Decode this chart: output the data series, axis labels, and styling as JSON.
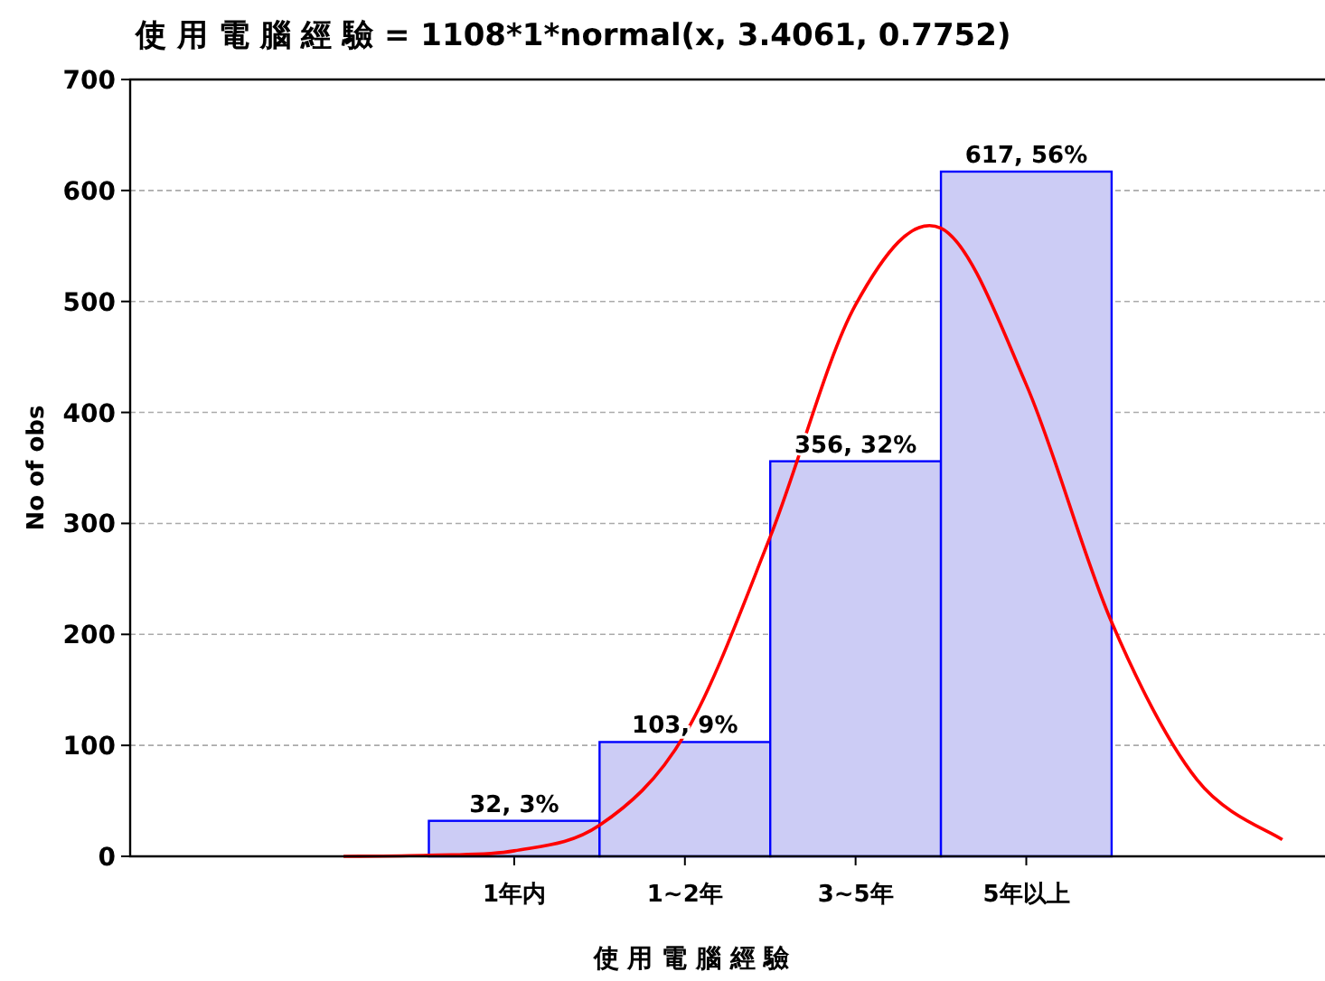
{
  "chart_data": {
    "type": "bar",
    "title": "使 用 電 腦 經 驗  = 1108*1*normal(x, 3.4061, 0.7752)",
    "xlabel": "使 用 電 腦 經 驗",
    "ylabel": "No of obs",
    "categories": [
      null,
      null,
      null,
      null,
      "1年内",
      null,
      "1~2年",
      null,
      "3~5年",
      null,
      "5年以上",
      null,
      null,
      null
    ],
    "values": [
      null,
      null,
      null,
      null,
      32,
      null,
      103,
      null,
      356,
      null,
      617,
      null,
      null,
      null
    ],
    "value_labels": [
      null,
      null,
      null,
      null,
      "32, 3%",
      null,
      "103, 9%",
      null,
      "356, 32%",
      null,
      "617, 56%",
      null,
      null,
      null
    ],
    "color": "#ccccf5",
    "series": [
      {
        "type": "line",
        "color": "#ff0000",
        "values": [
          null,
          null,
          0,
          1,
          5,
          28,
          110,
          288,
          497,
          566,
          425,
          211,
          69,
          15
        ]
      }
    ],
    "ylim": [
      0,
      700
    ],
    "yticks": [
      0,
      100,
      200,
      300,
      400,
      500,
      600,
      700
    ],
    "grid": "y"
  }
}
